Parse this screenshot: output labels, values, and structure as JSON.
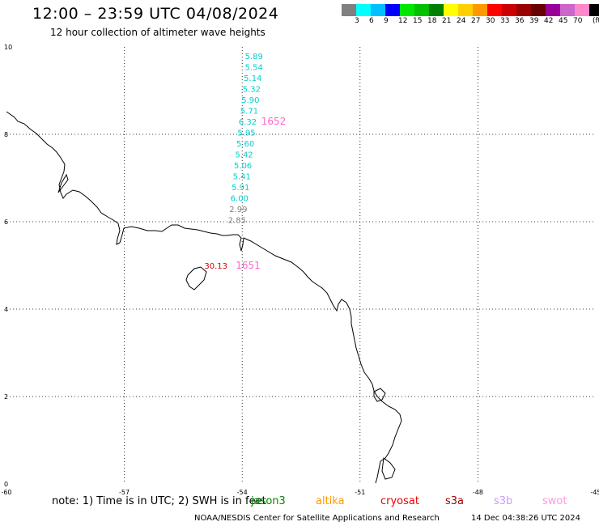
{
  "header": {
    "title": "12:00 – 23:59 UTC 04/08/2024",
    "subtitle": "12 hour collection of altimeter wave heights"
  },
  "legend": {
    "unit": "(ft)",
    "bins": [
      {
        "label": "",
        "color": "#808080"
      },
      {
        "label": "3",
        "color": "#00ffff"
      },
      {
        "label": "6",
        "color": "#00bfff"
      },
      {
        "label": "9",
        "color": "#0000ff"
      },
      {
        "label": "12",
        "color": "#00e600"
      },
      {
        "label": "15",
        "color": "#00c000"
      },
      {
        "label": "18",
        "color": "#008000"
      },
      {
        "label": "21",
        "color": "#ffff00"
      },
      {
        "label": "24",
        "color": "#ffd000"
      },
      {
        "label": "27",
        "color": "#ff9900"
      },
      {
        "label": "30",
        "color": "#ff0000"
      },
      {
        "label": "33",
        "color": "#cc0000"
      },
      {
        "label": "36",
        "color": "#990000"
      },
      {
        "label": "39",
        "color": "#660000"
      },
      {
        "label": "42",
        "color": "#990099"
      },
      {
        "label": "45",
        "color": "#cc66cc"
      },
      {
        "label": "70",
        "color": "#ff88cc"
      },
      {
        "label": "",
        "color": "#000000"
      }
    ]
  },
  "map": {
    "lon_range": [
      -60,
      -45
    ],
    "lat_range": [
      0,
      10
    ],
    "lon_ticks": [
      "-60",
      "-57",
      "-54",
      "-51",
      "-48",
      "-45"
    ],
    "lat_ticks": [
      "0",
      "2",
      "4",
      "6",
      "8",
      "10"
    ],
    "grid": "dotted"
  },
  "wave_heights": [
    {
      "text": "5.89",
      "lon": -53.7,
      "lat": 9.8,
      "color": "#00d0d0"
    },
    {
      "text": "5.54",
      "lon": -53.7,
      "lat": 9.55,
      "color": "#00d0d0"
    },
    {
      "text": "5.14",
      "lon": -53.73,
      "lat": 9.3,
      "color": "#00d0d0"
    },
    {
      "text": "5.32",
      "lon": -53.76,
      "lat": 9.05,
      "color": "#00d0d0"
    },
    {
      "text": "5.90",
      "lon": -53.79,
      "lat": 8.8,
      "color": "#00d0d0"
    },
    {
      "text": "5.71",
      "lon": -53.82,
      "lat": 8.55,
      "color": "#00d0d0"
    },
    {
      "text": "6.32",
      "lon": -53.86,
      "lat": 8.3,
      "color": "#00d0d0"
    },
    {
      "text": "5.95",
      "lon": -53.89,
      "lat": 8.05,
      "color": "#00d0d0"
    },
    {
      "text": "5.60",
      "lon": -53.92,
      "lat": 7.8,
      "color": "#00d0d0"
    },
    {
      "text": "5.42",
      "lon": -53.95,
      "lat": 7.55,
      "color": "#00d0d0"
    },
    {
      "text": "5.06",
      "lon": -53.98,
      "lat": 7.3,
      "color": "#00d0d0"
    },
    {
      "text": "5.41",
      "lon": -54.01,
      "lat": 7.05,
      "color": "#00d0d0"
    },
    {
      "text": "5.91",
      "lon": -54.04,
      "lat": 6.8,
      "color": "#00d0d0"
    },
    {
      "text": "6.00",
      "lon": -54.07,
      "lat": 6.55,
      "color": "#00d0d0"
    },
    {
      "text": "2.99",
      "lon": -54.1,
      "lat": 6.3,
      "color": "#808080"
    },
    {
      "text": "2.85",
      "lon": -54.13,
      "lat": 6.05,
      "color": "#808080"
    },
    {
      "text": "30.13",
      "lon": -54.67,
      "lat": 5.0,
      "color": "#dd0000"
    }
  ],
  "pass_times": [
    {
      "text": "1652",
      "lon": -53.2,
      "lat": 8.3,
      "color": "#ff66cc"
    },
    {
      "text": "1651",
      "lon": -53.85,
      "lat": 5.0,
      "color": "#ff66cc"
    }
  ],
  "footer": {
    "note": "note: 1) Time is in UTC; 2) SWH is in feet",
    "satellites": [
      {
        "name": "jason3",
        "color": "#008800"
      },
      {
        "name": "altika",
        "color": "#ff9900"
      },
      {
        "name": "cryosat",
        "color": "#ee0000"
      },
      {
        "name": "s3a",
        "color": "#990000"
      },
      {
        "name": "s3b",
        "color": "#cc99ff"
      },
      {
        "name": "swot",
        "color": "#ff99dd"
      }
    ],
    "credit": "NOAA/NESDIS Center for Satellite Applications and Research",
    "timestamp": "14 Dec 04:38:26 UTC 2024"
  }
}
